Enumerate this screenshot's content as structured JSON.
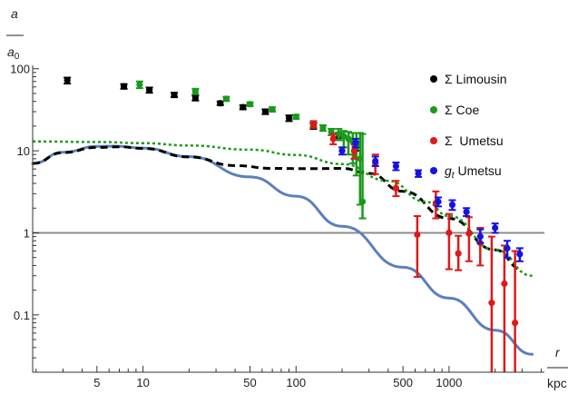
{
  "chart_data": {
    "type": "scatter",
    "xscale": "log",
    "yscale": "log",
    "xlim": [
      1.9,
      4200
    ],
    "ylim": [
      0.02,
      110
    ],
    "xticks": [
      {
        "v": 5,
        "label": "5"
      },
      {
        "v": 10,
        "label": "10"
      },
      {
        "v": 50,
        "label": "50"
      },
      {
        "v": 100,
        "label": "100"
      },
      {
        "v": 500,
        "label": "500"
      },
      {
        "v": 1000,
        "label": "1000"
      }
    ],
    "yticks": [
      {
        "v": 0.1,
        "label": "0.1"
      },
      {
        "v": 1,
        "label": "1"
      },
      {
        "v": 10,
        "label": "10"
      },
      {
        "v": 100,
        "label": "100"
      }
    ],
    "ylabel": {
      "num": "a",
      "den": "a",
      "den_sub": "0"
    },
    "xlabel": {
      "num": "r",
      "den": "kpc"
    },
    "reference_line": {
      "y": 1,
      "color": "#8c8c8c"
    },
    "series": [
      {
        "name": "Σ Limousin",
        "color": "#000000",
        "points": [
          {
            "x": 3.2,
            "y": 72,
            "lo": 66,
            "hi": 78
          },
          {
            "x": 7.5,
            "y": 61,
            "lo": 57,
            "hi": 65
          },
          {
            "x": 11,
            "y": 55,
            "lo": 51,
            "hi": 59
          },
          {
            "x": 16,
            "y": 48,
            "lo": 45,
            "hi": 51
          },
          {
            "x": 22,
            "y": 44,
            "lo": 41,
            "hi": 47
          },
          {
            "x": 32,
            "y": 38,
            "lo": 36,
            "hi": 40
          },
          {
            "x": 45,
            "y": 34,
            "lo": 32,
            "hi": 36
          },
          {
            "x": 63,
            "y": 30,
            "lo": 28,
            "hi": 32
          },
          {
            "x": 90,
            "y": 25,
            "lo": 23,
            "hi": 27
          },
          {
            "x": 130,
            "y": 20,
            "lo": 18.5,
            "hi": 21.5
          },
          {
            "x": 190,
            "y": 15,
            "lo": 13.5,
            "hi": 16.5
          },
          {
            "x": 250,
            "y": 11.5,
            "lo": 10,
            "hi": 13
          }
        ]
      },
      {
        "name": "Σ Coe",
        "color": "#1a9a1a",
        "points": [
          {
            "x": 9.5,
            "y": 64,
            "lo": 58,
            "hi": 70
          },
          {
            "x": 22,
            "y": 53,
            "lo": 49,
            "hi": 57
          },
          {
            "x": 35,
            "y": 43,
            "lo": 40.5,
            "hi": 45.5
          },
          {
            "x": 50,
            "y": 37,
            "lo": 35,
            "hi": 39
          },
          {
            "x": 70,
            "y": 32,
            "lo": 30,
            "hi": 34
          },
          {
            "x": 100,
            "y": 26,
            "lo": 24.5,
            "hi": 27.5
          },
          {
            "x": 130,
            "y": 21,
            "lo": 19.5,
            "hi": 22.5
          },
          {
            "x": 150,
            "y": 19,
            "lo": 17.5,
            "hi": 20.5
          },
          {
            "x": 170,
            "y": 17,
            "lo": 15.5,
            "hi": 18.5
          },
          {
            "x": 190,
            "y": 16,
            "lo": 13.5,
            "hi": 18.5
          },
          {
            "x": 205,
            "y": 15,
            "lo": 11,
            "hi": 17.5
          },
          {
            "x": 220,
            "y": 14,
            "lo": 9,
            "hi": 17
          },
          {
            "x": 235,
            "y": 13,
            "lo": 7,
            "hi": 16.5
          },
          {
            "x": 248,
            "y": 12,
            "lo": 5,
            "hi": 16.5
          },
          {
            "x": 262,
            "y": 8,
            "lo": 2.2,
            "hi": 16.5
          },
          {
            "x": 272,
            "y": 2.4,
            "lo": 1.5,
            "hi": 16
          }
        ]
      },
      {
        "name": "Σ  Umetsu",
        "color": "#e01919",
        "points": [
          {
            "x": 130,
            "y": 21,
            "lo": 19,
            "hi": 23
          },
          {
            "x": 175,
            "y": 14,
            "lo": 12,
            "hi": 16
          },
          {
            "x": 240,
            "y": 10,
            "lo": 8,
            "hi": 12
          },
          {
            "x": 330,
            "y": 7,
            "lo": 5.2,
            "hi": 9
          },
          {
            "x": 450,
            "y": 3.5,
            "lo": 2.8,
            "hi": 4.3
          },
          {
            "x": 620,
            "y": 0.95,
            "lo": 0.29,
            "hi": 1.6
          },
          {
            "x": 820,
            "y": 2.3,
            "lo": 1.5,
            "hi": 3.2
          },
          {
            "x": 1000,
            "y": 1.0,
            "lo": 0.36,
            "hi": 1.7
          },
          {
            "x": 1150,
            "y": 0.56,
            "lo": 0.35,
            "hi": 0.92
          },
          {
            "x": 1350,
            "y": 0.98,
            "lo": 0.45,
            "hi": 1.55
          },
          {
            "x": 1600,
            "y": 0.75,
            "lo": 0.4,
            "hi": 1.15
          },
          {
            "x": 1900,
            "y": 0.14,
            "lo": 0.02,
            "hi": 0.9
          },
          {
            "x": 2300,
            "y": 0.24,
            "lo": 0.02,
            "hi": 0.7
          },
          {
            "x": 2700,
            "y": 0.08,
            "lo": 0.02,
            "hi": 0.6
          }
        ]
      },
      {
        "name": "g_t Umetsu",
        "color": "#1414dc",
        "points": [
          {
            "x": 200,
            "y": 10,
            "lo": 9,
            "hi": 11
          },
          {
            "x": 245,
            "y": 12.5,
            "lo": 11,
            "hi": 14
          },
          {
            "x": 330,
            "y": 7.5,
            "lo": 6.5,
            "hi": 8.5
          },
          {
            "x": 450,
            "y": 6.5,
            "lo": 5.8,
            "hi": 7.2
          },
          {
            "x": 630,
            "y": 5.3,
            "lo": 4.8,
            "hi": 5.8
          },
          {
            "x": 850,
            "y": 2.4,
            "lo": 2.1,
            "hi": 2.7
          },
          {
            "x": 1050,
            "y": 2.2,
            "lo": 1.9,
            "hi": 2.5
          },
          {
            "x": 1300,
            "y": 1.8,
            "lo": 1.6,
            "hi": 2.0
          },
          {
            "x": 1600,
            "y": 0.9,
            "lo": 0.75,
            "hi": 1.1
          },
          {
            "x": 2000,
            "y": 1.15,
            "lo": 1.0,
            "hi": 1.3
          },
          {
            "x": 2400,
            "y": 0.65,
            "lo": 0.5,
            "hi": 0.8
          },
          {
            "x": 2900,
            "y": 0.55,
            "lo": 0.45,
            "hi": 0.65
          }
        ]
      }
    ],
    "curves": [
      {
        "style": "solid",
        "color": "#5a80bd",
        "points": [
          [
            1.9,
            7.0
          ],
          [
            3,
            9.6
          ],
          [
            5,
            11.3
          ],
          [
            6.5,
            11.4
          ],
          [
            10,
            10.8
          ],
          [
            20,
            8.5
          ],
          [
            50,
            4.8
          ],
          [
            100,
            2.8
          ],
          [
            200,
            1.2
          ],
          [
            500,
            0.38
          ],
          [
            1000,
            0.16
          ],
          [
            2000,
            0.065
          ],
          [
            3500,
            0.033
          ]
        ]
      },
      {
        "style": "dashed",
        "color": "#000000",
        "points": [
          [
            1.9,
            7.0
          ],
          [
            3,
            9.5
          ],
          [
            5,
            11.0
          ],
          [
            7,
            11.2
          ],
          [
            10,
            10.7
          ],
          [
            20,
            8.4
          ],
          [
            40,
            6.6
          ],
          [
            70,
            6.1
          ],
          [
            120,
            6.05
          ],
          [
            200,
            6.1
          ],
          [
            300,
            5.3
          ],
          [
            500,
            3.2
          ],
          [
            1000,
            1.5
          ],
          [
            2000,
            0.62
          ],
          [
            3000,
            0.36
          ]
        ]
      },
      {
        "style": "dotted",
        "color": "#1a9a1a",
        "points": [
          [
            1.9,
            13.0
          ],
          [
            5,
            12.8
          ],
          [
            10,
            12.4
          ],
          [
            20,
            11.6
          ],
          [
            50,
            10.3
          ],
          [
            100,
            8.9
          ],
          [
            200,
            6.9
          ],
          [
            400,
            4.3
          ],
          [
            700,
            2.4
          ],
          [
            1000,
            1.6
          ],
          [
            2000,
            0.62
          ],
          [
            3500,
            0.3
          ]
        ]
      }
    ],
    "legend": {
      "placement": "top-right",
      "entries": [
        {
          "label": "Σ Limousin",
          "color": "#000000"
        },
        {
          "label": "Σ Coe",
          "color": "#1a9a1a"
        },
        {
          "label": "Σ  Umetsu",
          "color": "#e01919"
        },
        {
          "label_main": "g",
          "label_sub": "t",
          "label_rest": " Umetsu",
          "color": "#1414dc"
        }
      ]
    }
  }
}
